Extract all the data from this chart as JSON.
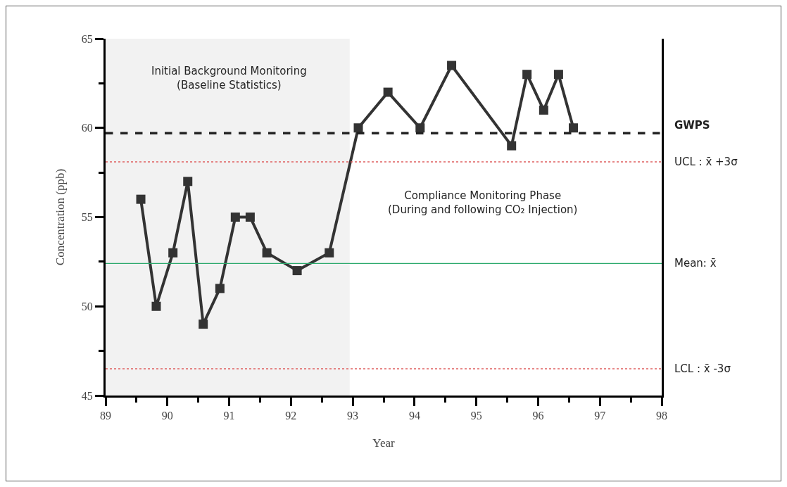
{
  "chart_data": {
    "type": "line",
    "xlabel": "Year",
    "ylabel": "Concentration (ppb)",
    "x": [
      89.57,
      89.82,
      90.09,
      90.33,
      90.58,
      90.85,
      91.1,
      91.34,
      91.61,
      92.1,
      92.62,
      93.09,
      93.57,
      94.09,
      94.6,
      95.57,
      95.82,
      96.09,
      96.33,
      96.57
    ],
    "series": [
      {
        "color": "#333333",
        "values": [
          56,
          50,
          53,
          57,
          49,
          51,
          55,
          55,
          53,
          52,
          53,
          60,
          62,
          60,
          63.5,
          59,
          63,
          61,
          63,
          60
        ]
      }
    ],
    "marker": "square",
    "line_style": "solid",
    "grid": false,
    "xlim": [
      89,
      98
    ],
    "xticks": [
      89,
      {
        "value": 89.5,
        "label": null
      },
      90,
      {
        "value": 90.5,
        "label": null
      },
      91,
      {
        "value": 91.5,
        "label": null
      },
      92,
      {
        "value": 92.5,
        "label": null
      },
      93,
      {
        "value": 93.5,
        "label": null
      },
      94,
      {
        "value": 94.5,
        "label": null
      },
      95,
      {
        "value": 95.5,
        "label": null
      },
      96,
      {
        "value": 96.5,
        "label": null
      },
      97,
      {
        "value": 97.5,
        "label": null
      },
      98
    ],
    "ylim": [
      45,
      65
    ],
    "yticks": [
      45,
      {
        "value": 47.5,
        "label": null
      },
      50,
      {
        "value": 52.5,
        "label": null
      },
      55,
      {
        "value": 57.5,
        "label": null
      },
      60,
      {
        "value": 62.5,
        "label": null
      },
      65
    ],
    "ref_lines": [
      {
        "axis": "y",
        "value": 59.7,
        "label": "GWPS",
        "color": "#222222",
        "line_style": "dashed"
      },
      {
        "axis": "y",
        "value": 58.1,
        "label": "UCL : x̄ +3σ",
        "color": "#e06060",
        "line_style": "dotted"
      },
      {
        "axis": "y",
        "value": 52.4,
        "label": "Mean: x̄",
        "color": "#2eaa6e",
        "line_style": "solid"
      },
      {
        "axis": "y",
        "value": 46.5,
        "label": "LCL : x̄ -3σ",
        "color": "#e06060",
        "line_style": "dotted"
      }
    ],
    "bands": [
      {
        "axis": "x",
        "from": 89,
        "to": 92.95,
        "color": "#f2f2f2"
      }
    ],
    "annotations": [
      "Initial Background Monitoring\n(Baseline Statistics)",
      "Compliance Monitoring Phase\n(During and following CO₂ Injection)"
    ]
  }
}
